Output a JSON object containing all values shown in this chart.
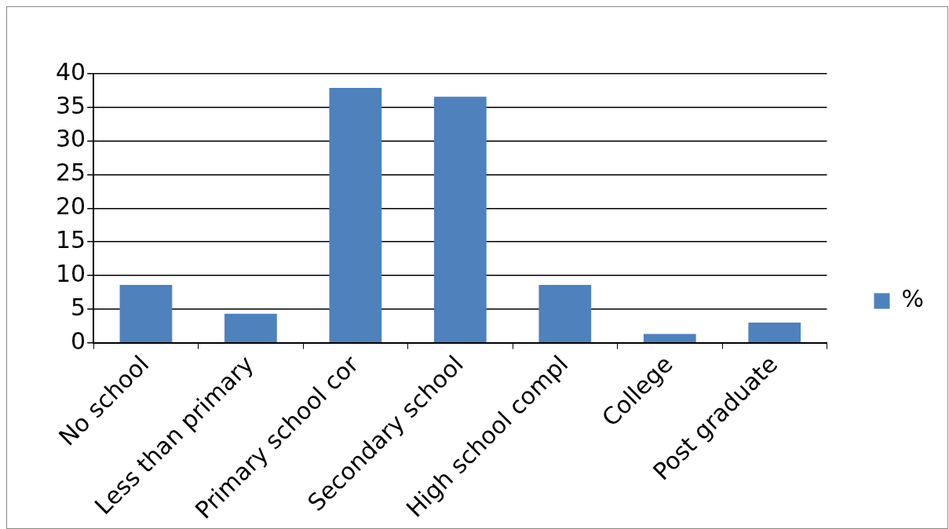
{
  "chart_data": {
    "type": "bar",
    "categories": [
      "No school",
      "Less than primary",
      "Primary school cor",
      "Secondary school",
      "High school compl",
      "College",
      "Post graduate"
    ],
    "series": [
      {
        "name": "%",
        "color": "#4f81bd",
        "values": [
          8.6,
          4.3,
          37.9,
          36.6,
          8.6,
          1.3,
          3.0
        ]
      }
    ],
    "ylim": [
      0,
      40
    ],
    "yticks": [
      0,
      5,
      10,
      15,
      20,
      25,
      30,
      35,
      40
    ],
    "grid": "y",
    "legend": "right"
  }
}
